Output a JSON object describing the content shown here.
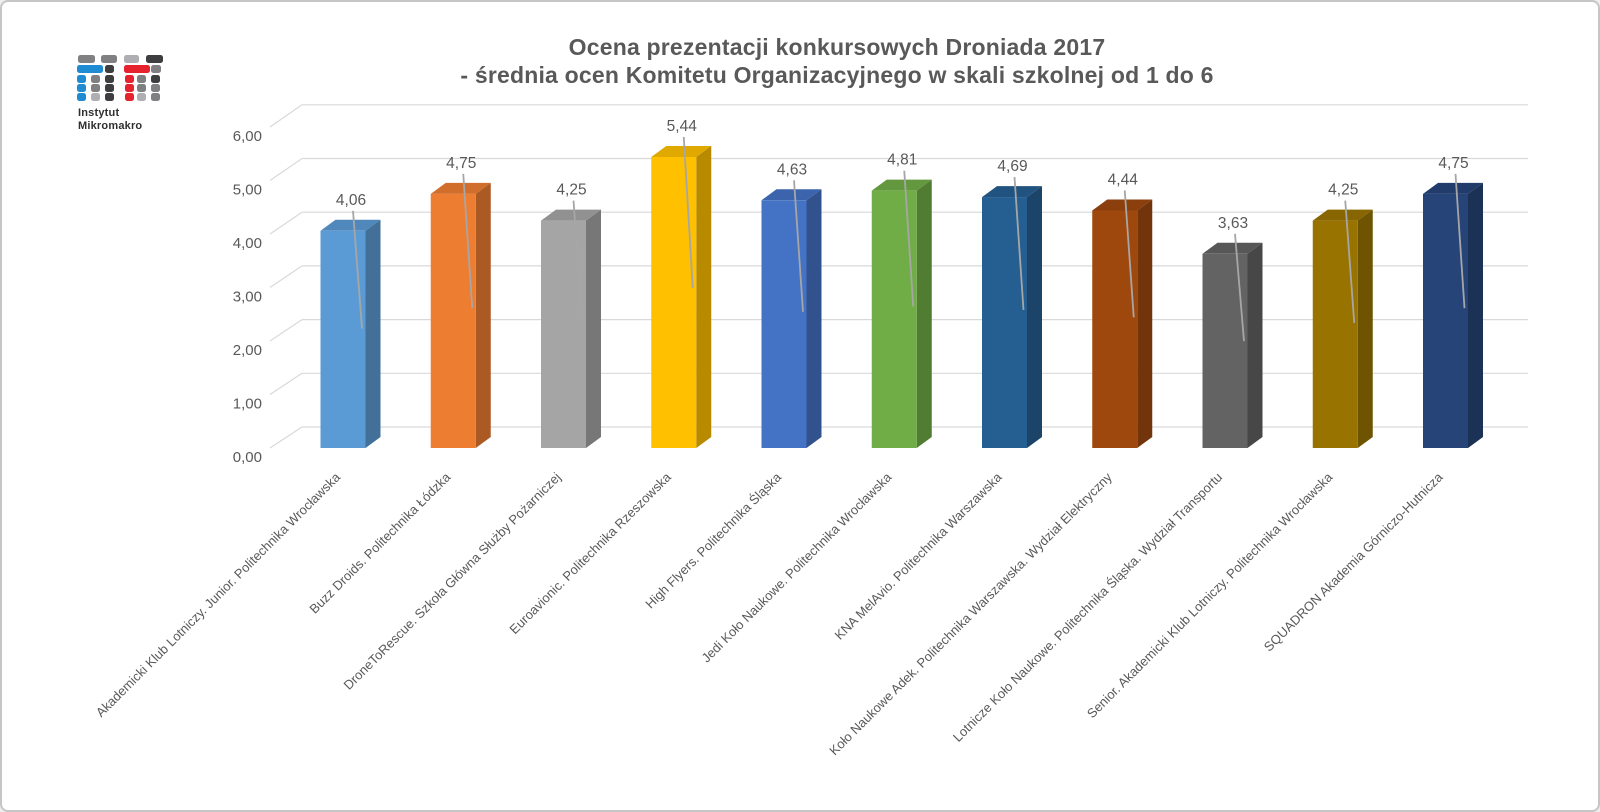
{
  "logo": {
    "line1": "Instytut",
    "line2": "Mikromakro",
    "colors": {
      "blue": "#1E8BD2",
      "red": "#E6222E",
      "dark": "#3E3E40",
      "mid": "#808083",
      "light": "#AFAFB3"
    }
  },
  "title": {
    "line1": "Ocena prezentacji konkursowych Droniada 2017",
    "line2": "- średnia ocen Komitetu Organizacyjnego w skali szkolnej od 1 do 6"
  },
  "chart_data": {
    "type": "bar",
    "style": "3d-column",
    "title": "Ocena prezentacji konkursowych Droniada 2017 - średnia ocen Komitetu Organizacyjnego w skali szkolnej od 1 do 6",
    "categories": [
      "Akademicki Klub Lotniczy. Junior. Politechnika Wrocławska",
      "Buzz Droids. Politechnika Łódzka",
      "DroneToRescue. Szkoła Główna Służby Pożarniczej",
      "Euroavionic. Politechnika Rzeszowska",
      "High Flyers. Politechnika Śląska",
      "Jedi Koło Naukowe. Politechnika Wrocławska",
      "KNA MelAvio. Politechnika Warszawska",
      "Koło Naukowe Adek. Politechnika Warszawska. Wydział Elektryczny",
      "Lotnicze Koło Naukowe. Politechnika Śląska. Wydział Transportu",
      "Senior. Akademicki Klub Lotniczy. Politechnika Wrocławska",
      "SQUADRON Akademia Górniczo-Hutnicza"
    ],
    "values": [
      4.06,
      4.75,
      4.25,
      5.44,
      4.63,
      4.81,
      4.69,
      4.44,
      3.63,
      4.25,
      4.75
    ],
    "value_labels": [
      "4,06",
      "4,75",
      "4,25",
      "5,44",
      "4,63",
      "4,81",
      "4,69",
      "4,44",
      "3,63",
      "4,25",
      "4,75"
    ],
    "bar_colors": [
      "#5B9BD5",
      "#ED7D31",
      "#A5A5A5",
      "#FFC000",
      "#4472C4",
      "#70AD47",
      "#255E91",
      "#9E480E",
      "#636363",
      "#997300",
      "#264478"
    ],
    "y_ticks": [
      "0,00",
      "1,00",
      "2,00",
      "3,00",
      "4,00",
      "5,00",
      "6,00"
    ],
    "ylim": [
      0,
      6
    ],
    "xlabel": "",
    "ylabel": "",
    "grid": true,
    "legend": "none",
    "label_color": "#595959",
    "gridline_color": "#D9D9D9",
    "leader_color": "#A6A6A6"
  }
}
